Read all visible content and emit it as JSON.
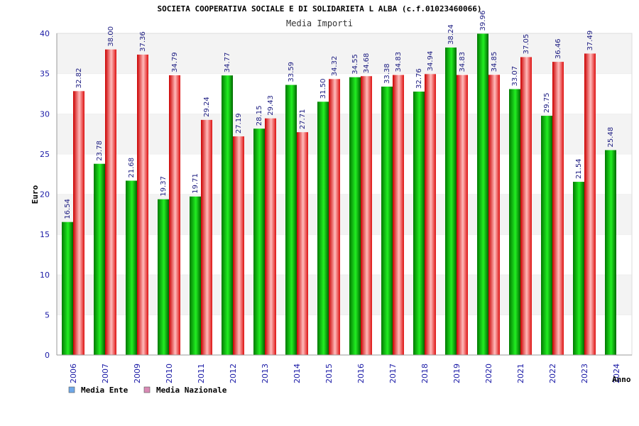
{
  "chart_data": {
    "type": "bar",
    "title": "SOCIETA COOPERATIVA SOCIALE E DI SOLIDARIETA L ALBA (c.f.01023460066)",
    "subtitle": "Media Importi",
    "xlabel": "Anno",
    "ylabel": "Euro",
    "ylim": [
      0,
      40
    ],
    "yticks": [
      0,
      5,
      10,
      15,
      20,
      25,
      30,
      35,
      40
    ],
    "grid": true,
    "legend_position": "bottom-left",
    "categories": [
      "2006",
      "2007",
      "2009",
      "2010",
      "2011",
      "2012",
      "2013",
      "2014",
      "2015",
      "2016",
      "2017",
      "2018",
      "2019",
      "2020",
      "2021",
      "2022",
      "2023",
      "2024"
    ],
    "series": [
      {
        "name": "Media Ente",
        "color": "#00cc00",
        "legend_color": "#6fa8e8",
        "values": [
          16.54,
          23.78,
          21.68,
          19.37,
          19.71,
          34.77,
          28.15,
          33.59,
          31.5,
          34.55,
          33.38,
          32.76,
          38.24,
          39.96,
          33.07,
          29.75,
          21.54,
          25.48
        ],
        "labels": [
          "16.54",
          "23.78",
          "21.68",
          "19.37",
          "19.71",
          "34.77",
          "28.15",
          "33.59",
          "31.50",
          "34.55",
          "33.38",
          "32.76",
          "38.24",
          "39.96",
          "33.07",
          "29.75",
          "21.54",
          "25.48"
        ]
      },
      {
        "name": "Media Nazionale",
        "color": "#ee2222",
        "legend_color": "#d98ab5",
        "values": [
          32.82,
          38.0,
          37.36,
          34.79,
          29.24,
          27.19,
          29.43,
          27.71,
          34.32,
          34.68,
          34.83,
          34.94,
          34.83,
          34.85,
          37.05,
          36.46,
          37.49,
          null
        ],
        "labels": [
          "32.82",
          "38.00",
          "37.36",
          "34.79",
          "29.24",
          "27.19",
          "29.43",
          "27.71",
          "34.32",
          "34.68",
          "34.83",
          "34.94",
          "34.83",
          "34.85",
          "37.05",
          "36.46",
          "37.49",
          ""
        ]
      }
    ]
  }
}
